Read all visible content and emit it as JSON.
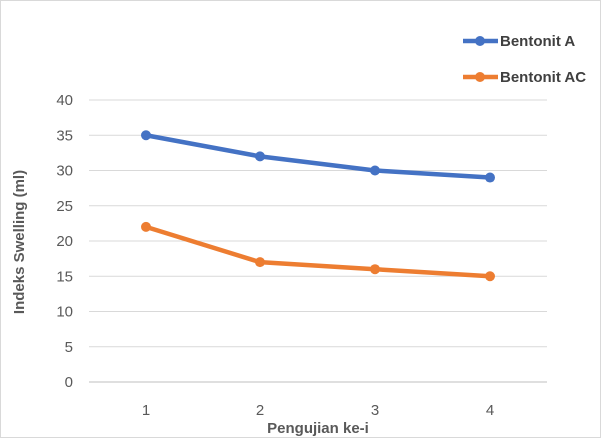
{
  "chart_data": {
    "type": "line",
    "title": "",
    "xlabel": "Pengujian ke-i",
    "ylabel": "Indeks Swelling (ml)",
    "categories": [
      "1",
      "2",
      "3",
      "4"
    ],
    "ylim": [
      0,
      40
    ],
    "yticks": [
      0,
      5,
      10,
      15,
      20,
      25,
      30,
      35,
      40
    ],
    "grid": true,
    "legend_position": "top-right",
    "series": [
      {
        "name": "Bentonit A",
        "values": [
          35,
          32,
          30,
          29
        ],
        "color": "#4472c4"
      },
      {
        "name": "Bentonit AC",
        "values": [
          22,
          17,
          16,
          15
        ],
        "color": "#ed7d31"
      }
    ]
  }
}
